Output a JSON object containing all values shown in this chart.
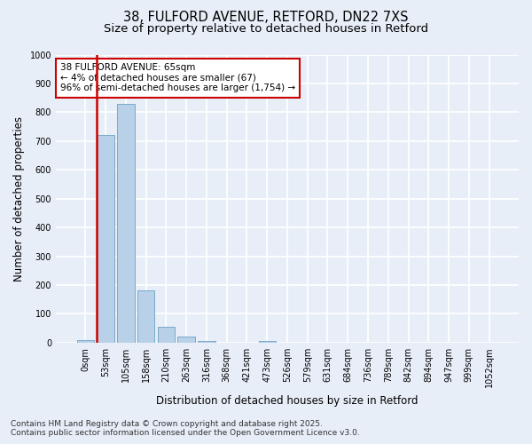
{
  "title_line1": "38, FULFORD AVENUE, RETFORD, DN22 7XS",
  "title_line2": "Size of property relative to detached houses in Retford",
  "xlabel": "Distribution of detached houses by size in Retford",
  "ylabel": "Number of detached properties",
  "bar_labels": [
    "0sqm",
    "53sqm",
    "105sqm",
    "158sqm",
    "210sqm",
    "263sqm",
    "316sqm",
    "368sqm",
    "421sqm",
    "473sqm",
    "526sqm",
    "579sqm",
    "631sqm",
    "684sqm",
    "736sqm",
    "789sqm",
    "842sqm",
    "894sqm",
    "947sqm",
    "999sqm",
    "1052sqm"
  ],
  "bar_values": [
    10,
    720,
    830,
    180,
    55,
    20,
    5,
    0,
    0,
    5,
    0,
    0,
    0,
    0,
    0,
    0,
    0,
    0,
    0,
    0,
    0
  ],
  "bar_color": "#b8d0e8",
  "bar_edge_color": "#7aaac8",
  "background_color": "#e8eef8",
  "grid_color": "#ffffff",
  "red_line_x": 0.575,
  "annotation_text": "38 FULFORD AVENUE: 65sqm\n← 4% of detached houses are smaller (67)\n96% of semi-detached houses are larger (1,754) →",
  "annotation_box_facecolor": "#ffffff",
  "annotation_box_edgecolor": "#cc0000",
  "ylim": [
    0,
    1000
  ],
  "yticks": [
    0,
    100,
    200,
    300,
    400,
    500,
    600,
    700,
    800,
    900,
    1000
  ],
  "footer_line1": "Contains HM Land Registry data © Crown copyright and database right 2025.",
  "footer_line2": "Contains public sector information licensed under the Open Government Licence v3.0.",
  "title_fontsize": 10.5,
  "subtitle_fontsize": 9.5,
  "axis_label_fontsize": 8.5,
  "tick_fontsize": 7,
  "annotation_fontsize": 7.5,
  "footer_fontsize": 6.5
}
